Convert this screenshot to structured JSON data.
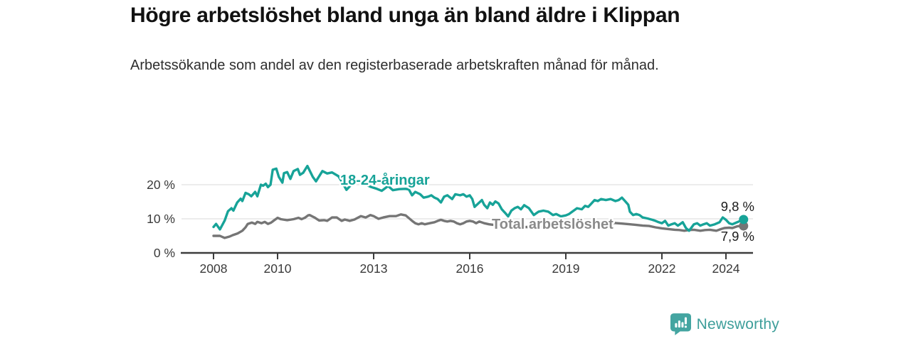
{
  "chart_data": {
    "type": "line",
    "title": "Högre arbetslöshet bland unga än bland äldre i Klippan",
    "subtitle": "Arbetssökande som andel av den registerbaserade arbetskraften månad för månad.",
    "grid": "horizontal",
    "legend_position": "inline-labels",
    "xlim": [
      2007.0,
      2024.9
    ],
    "ylim": [
      0,
      29
    ],
    "y_ticks": [
      {
        "value": 0,
        "label": "0 %"
      },
      {
        "value": 10,
        "label": "10 %"
      },
      {
        "value": 20,
        "label": "20 %"
      }
    ],
    "x_ticks": [
      {
        "value": 2008,
        "label": "2008"
      },
      {
        "value": 2010,
        "label": "2010"
      },
      {
        "value": 2013,
        "label": "2013"
      },
      {
        "value": 2016,
        "label": "2016"
      },
      {
        "value": 2019,
        "label": "2019"
      },
      {
        "value": 2022,
        "label": "2022"
      },
      {
        "value": 2024,
        "label": "2024"
      }
    ],
    "series": [
      {
        "name": "Total arbetslöshet",
        "color": "#757575",
        "label_color": "#8a8a8a",
        "end_label": "7,9 %",
        "end_value": 7.9,
        "points": [
          [
            2008.0,
            5.0
          ],
          [
            2008.2,
            5.0
          ],
          [
            2008.35,
            4.4
          ],
          [
            2008.5,
            4.8
          ],
          [
            2008.6,
            5.2
          ],
          [
            2008.75,
            5.7
          ],
          [
            2008.9,
            6.5
          ],
          [
            2009.0,
            7.5
          ],
          [
            2009.07,
            8.5
          ],
          [
            2009.2,
            8.9
          ],
          [
            2009.3,
            8.5
          ],
          [
            2009.37,
            9.1
          ],
          [
            2009.5,
            8.7
          ],
          [
            2009.6,
            9.1
          ],
          [
            2009.7,
            8.5
          ],
          [
            2009.8,
            8.9
          ],
          [
            2009.9,
            9.6
          ],
          [
            2010.0,
            10.3
          ],
          [
            2010.1,
            9.9
          ],
          [
            2010.3,
            9.6
          ],
          [
            2010.5,
            9.9
          ],
          [
            2010.65,
            10.3
          ],
          [
            2010.75,
            9.9
          ],
          [
            2010.85,
            10.3
          ],
          [
            2010.95,
            11.0
          ],
          [
            2011.0,
            11.1
          ],
          [
            2011.15,
            10.4
          ],
          [
            2011.3,
            9.5
          ],
          [
            2011.45,
            9.6
          ],
          [
            2011.55,
            9.4
          ],
          [
            2011.7,
            10.4
          ],
          [
            2011.85,
            10.4
          ],
          [
            2012.0,
            9.4
          ],
          [
            2012.1,
            9.8
          ],
          [
            2012.25,
            9.4
          ],
          [
            2012.4,
            9.8
          ],
          [
            2012.6,
            10.8
          ],
          [
            2012.75,
            10.4
          ],
          [
            2012.9,
            11.1
          ],
          [
            2013.0,
            10.8
          ],
          [
            2013.15,
            10.0
          ],
          [
            2013.3,
            10.4
          ],
          [
            2013.5,
            10.8
          ],
          [
            2013.7,
            10.8
          ],
          [
            2013.85,
            11.3
          ],
          [
            2014.0,
            11.0
          ],
          [
            2014.1,
            10.2
          ],
          [
            2014.2,
            9.4
          ],
          [
            2014.3,
            8.7
          ],
          [
            2014.4,
            8.4
          ],
          [
            2014.5,
            8.7
          ],
          [
            2014.6,
            8.4
          ],
          [
            2014.75,
            8.7
          ],
          [
            2014.9,
            9.0
          ],
          [
            2015.0,
            9.4
          ],
          [
            2015.1,
            9.7
          ],
          [
            2015.2,
            9.4
          ],
          [
            2015.3,
            9.2
          ],
          [
            2015.4,
            9.4
          ],
          [
            2015.5,
            9.2
          ],
          [
            2015.6,
            8.7
          ],
          [
            2015.7,
            8.4
          ],
          [
            2015.8,
            8.7
          ],
          [
            2015.9,
            9.2
          ],
          [
            2016.0,
            9.4
          ],
          [
            2016.1,
            9.2
          ],
          [
            2016.2,
            8.7
          ],
          [
            2016.3,
            9.2
          ],
          [
            2016.45,
            8.7
          ],
          [
            2016.6,
            8.4
          ],
          [
            2016.75,
            8.2
          ],
          [
            2016.9,
            8.0
          ],
          [
            2017.0,
            7.7
          ],
          [
            2017.1,
            7.3
          ],
          [
            2017.25,
            7.7
          ],
          [
            2017.4,
            7.3
          ],
          [
            2017.6,
            7.5
          ],
          [
            2017.8,
            7.6
          ],
          [
            2018.0,
            7.4
          ],
          [
            2018.25,
            7.6
          ],
          [
            2018.5,
            7.5
          ],
          [
            2018.75,
            7.7
          ],
          [
            2019.0,
            7.8
          ],
          [
            2019.25,
            7.9
          ],
          [
            2019.5,
            7.8
          ],
          [
            2019.75,
            8.0
          ],
          [
            2020.0,
            8.2
          ],
          [
            2020.25,
            8.6
          ],
          [
            2020.5,
            8.8
          ],
          [
            2020.75,
            8.6
          ],
          [
            2021.0,
            8.4
          ],
          [
            2021.2,
            8.2
          ],
          [
            2021.4,
            8.0
          ],
          [
            2021.6,
            7.9
          ],
          [
            2021.8,
            7.5
          ],
          [
            2022.0,
            7.2
          ],
          [
            2022.2,
            7.0
          ],
          [
            2022.4,
            6.8
          ],
          [
            2022.55,
            6.7
          ],
          [
            2022.7,
            6.5
          ],
          [
            2022.85,
            6.7
          ],
          [
            2023.0,
            6.8
          ],
          [
            2023.2,
            6.5
          ],
          [
            2023.35,
            6.7
          ],
          [
            2023.5,
            6.8
          ],
          [
            2023.7,
            6.5
          ],
          [
            2023.85,
            7.0
          ],
          [
            2023.95,
            7.3
          ],
          [
            2024.1,
            7.4
          ],
          [
            2024.2,
            7.3
          ],
          [
            2024.35,
            7.8
          ],
          [
            2024.45,
            7.9
          ],
          [
            2024.55,
            7.9
          ]
        ]
      },
      {
        "name": "18-24-åringar",
        "color": "#17a398",
        "label_color": "#17a398",
        "end_label": "9,8 %",
        "end_value": 9.8,
        "points": [
          [
            2008.0,
            7.6
          ],
          [
            2008.08,
            8.5
          ],
          [
            2008.2,
            6.9
          ],
          [
            2008.35,
            9.5
          ],
          [
            2008.45,
            12.2
          ],
          [
            2008.56,
            13.1
          ],
          [
            2008.62,
            12.4
          ],
          [
            2008.74,
            14.8
          ],
          [
            2008.85,
            15.9
          ],
          [
            2008.9,
            15.2
          ],
          [
            2009.0,
            17.6
          ],
          [
            2009.1,
            17.2
          ],
          [
            2009.18,
            16.6
          ],
          [
            2009.3,
            17.9
          ],
          [
            2009.37,
            16.6
          ],
          [
            2009.48,
            20.0
          ],
          [
            2009.55,
            19.7
          ],
          [
            2009.63,
            20.3
          ],
          [
            2009.7,
            19.3
          ],
          [
            2009.78,
            20.0
          ],
          [
            2009.85,
            24.4
          ],
          [
            2009.96,
            24.7
          ],
          [
            2010.04,
            22.3
          ],
          [
            2010.15,
            20.6
          ],
          [
            2010.2,
            23.4
          ],
          [
            2010.3,
            23.7
          ],
          [
            2010.4,
            21.7
          ],
          [
            2010.5,
            24.0
          ],
          [
            2010.63,
            24.6
          ],
          [
            2010.7,
            22.9
          ],
          [
            2010.8,
            23.5
          ],
          [
            2010.93,
            25.5
          ],
          [
            2011.1,
            22.3
          ],
          [
            2011.2,
            21.0
          ],
          [
            2011.4,
            24.0
          ],
          [
            2011.55,
            23.3
          ],
          [
            2011.7,
            23.6
          ],
          [
            2011.9,
            22.5
          ],
          [
            2012.0,
            21.0
          ],
          [
            2012.15,
            18.5
          ],
          [
            2012.3,
            20.0
          ],
          [
            2012.5,
            20.8
          ],
          [
            2012.7,
            20.3
          ],
          [
            2012.9,
            19.4
          ],
          [
            2013.1,
            18.8
          ],
          [
            2013.25,
            18.2
          ],
          [
            2013.45,
            19.6
          ],
          [
            2013.6,
            18.4
          ],
          [
            2013.8,
            18.7
          ],
          [
            2014.0,
            18.8
          ],
          [
            2014.1,
            18.6
          ],
          [
            2014.2,
            16.9
          ],
          [
            2014.3,
            17.9
          ],
          [
            2014.45,
            17.2
          ],
          [
            2014.56,
            16.2
          ],
          [
            2014.7,
            16.5
          ],
          [
            2014.8,
            16.9
          ],
          [
            2014.9,
            16.2
          ],
          [
            2015.0,
            15.8
          ],
          [
            2015.1,
            14.8
          ],
          [
            2015.2,
            16.5
          ],
          [
            2015.3,
            16.9
          ],
          [
            2015.45,
            15.8
          ],
          [
            2015.55,
            17.2
          ],
          [
            2015.7,
            16.9
          ],
          [
            2015.8,
            17.2
          ],
          [
            2015.9,
            16.5
          ],
          [
            2016.0,
            16.9
          ],
          [
            2016.08,
            15.8
          ],
          [
            2016.15,
            13.5
          ],
          [
            2016.3,
            14.8
          ],
          [
            2016.38,
            15.5
          ],
          [
            2016.45,
            14.1
          ],
          [
            2016.55,
            13.1
          ],
          [
            2016.63,
            14.8
          ],
          [
            2016.72,
            14.1
          ],
          [
            2016.8,
            15.1
          ],
          [
            2016.9,
            14.5
          ],
          [
            2017.0,
            12.8
          ],
          [
            2017.1,
            11.8
          ],
          [
            2017.2,
            10.7
          ],
          [
            2017.3,
            12.4
          ],
          [
            2017.4,
            13.1
          ],
          [
            2017.5,
            13.5
          ],
          [
            2017.6,
            12.8
          ],
          [
            2017.7,
            14.0
          ],
          [
            2017.85,
            13.1
          ],
          [
            2018.0,
            11.1
          ],
          [
            2018.15,
            12.1
          ],
          [
            2018.3,
            12.4
          ],
          [
            2018.45,
            12.1
          ],
          [
            2018.6,
            11.1
          ],
          [
            2018.7,
            11.4
          ],
          [
            2018.85,
            10.7
          ],
          [
            2019.0,
            11.0
          ],
          [
            2019.1,
            11.4
          ],
          [
            2019.35,
            13.1
          ],
          [
            2019.5,
            12.8
          ],
          [
            2019.6,
            13.8
          ],
          [
            2019.7,
            13.5
          ],
          [
            2019.8,
            14.5
          ],
          [
            2019.9,
            15.5
          ],
          [
            2020.0,
            15.2
          ],
          [
            2020.1,
            15.8
          ],
          [
            2020.25,
            15.5
          ],
          [
            2020.4,
            15.8
          ],
          [
            2020.55,
            15.2
          ],
          [
            2020.65,
            15.5
          ],
          [
            2020.75,
            16.2
          ],
          [
            2020.85,
            15.2
          ],
          [
            2020.95,
            14.1
          ],
          [
            2021.0,
            12.1
          ],
          [
            2021.1,
            11.1
          ],
          [
            2021.2,
            11.4
          ],
          [
            2021.3,
            11.1
          ],
          [
            2021.4,
            10.4
          ],
          [
            2021.55,
            10.1
          ],
          [
            2021.7,
            9.7
          ],
          [
            2021.8,
            9.4
          ],
          [
            2021.9,
            9.0
          ],
          [
            2022.0,
            8.7
          ],
          [
            2022.1,
            9.4
          ],
          [
            2022.2,
            8.0
          ],
          [
            2022.3,
            8.4
          ],
          [
            2022.4,
            8.7
          ],
          [
            2022.5,
            8.0
          ],
          [
            2022.65,
            9.0
          ],
          [
            2022.75,
            7.3
          ],
          [
            2022.85,
            6.5
          ],
          [
            2023.0,
            8.4
          ],
          [
            2023.1,
            8.7
          ],
          [
            2023.2,
            8.0
          ],
          [
            2023.3,
            8.4
          ],
          [
            2023.4,
            8.7
          ],
          [
            2023.5,
            8.0
          ],
          [
            2023.65,
            8.4
          ],
          [
            2023.8,
            9.0
          ],
          [
            2023.9,
            10.4
          ],
          [
            2024.0,
            9.7
          ],
          [
            2024.1,
            8.7
          ],
          [
            2024.2,
            8.4
          ],
          [
            2024.35,
            9.0
          ],
          [
            2024.45,
            9.4
          ],
          [
            2024.55,
            9.8
          ]
        ]
      }
    ]
  },
  "footer": {
    "brand": "Newsworthy",
    "brand_color": "#3d9e9a",
    "icon": "newsworthy-logo"
  }
}
